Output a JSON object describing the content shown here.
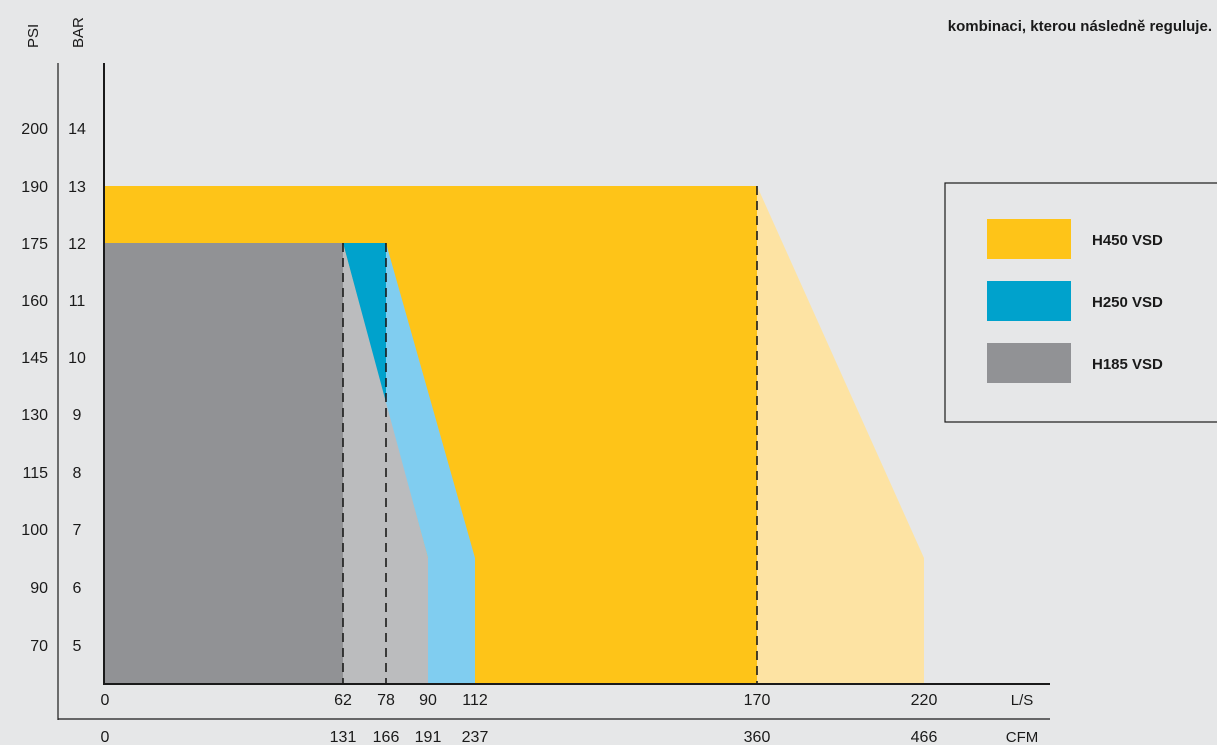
{
  "header": {
    "note": "kombinaci, kterou následně reguluje."
  },
  "chart_data": {
    "type": "area",
    "y_axis_units": {
      "psi": "PSI",
      "bar": "BAR"
    },
    "x_axis_units": {
      "ls": "L/S",
      "cfm": "CFM"
    },
    "y_ticks": [
      {
        "psi": "200",
        "bar": "14"
      },
      {
        "psi": "190",
        "bar": "13"
      },
      {
        "psi": "175",
        "bar": "12"
      },
      {
        "psi": "160",
        "bar": "11"
      },
      {
        "psi": "145",
        "bar": "10"
      },
      {
        "psi": "130",
        "bar": "9"
      },
      {
        "psi": "115",
        "bar": "8"
      },
      {
        "psi": "100",
        "bar": "7"
      },
      {
        "psi": "90",
        "bar": "6"
      },
      {
        "psi": "70",
        "bar": "5"
      }
    ],
    "x_ticks": [
      {
        "ls": "0",
        "cfm": "0"
      },
      {
        "ls": "62",
        "cfm": "131"
      },
      {
        "ls": "78",
        "cfm": "166"
      },
      {
        "ls": "90",
        "cfm": "191"
      },
      {
        "ls": "112",
        "cfm": "237"
      },
      {
        "ls": "170",
        "cfm": "360"
      },
      {
        "ls": "220",
        "cfm": "466"
      }
    ],
    "series": [
      {
        "name": "H450 VSD",
        "color": "#fec418",
        "fade_color": "#fde3a3",
        "full_pressure_flow": [
          0,
          170
        ],
        "max_pressure_bar": 13,
        "max_flow_at_bar": [
          {
            "flow": 112,
            "bar": 6
          },
          {
            "flow": 220,
            "bar": 6
          }
        ]
      },
      {
        "name": "H250 VSD",
        "color": "#00a2cc",
        "fade_color": "#80cdf0",
        "full_pressure_flow": [
          0,
          78
        ],
        "max_pressure_bar": 12,
        "max_flow_at_bar": [
          {
            "flow": 112,
            "bar": 6
          }
        ]
      },
      {
        "name": "H185 VSD",
        "color": "#919295",
        "fade_color": "#bbbcbe",
        "full_pressure_flow": [
          0,
          62
        ],
        "max_pressure_bar": 12,
        "max_flow_at_bar": [
          {
            "flow": 90,
            "bar": 6
          }
        ]
      }
    ],
    "x_range_ls": [
      0,
      230
    ],
    "y_range_bar": [
      4,
      15
    ],
    "legend_position": "right",
    "grid": false
  }
}
